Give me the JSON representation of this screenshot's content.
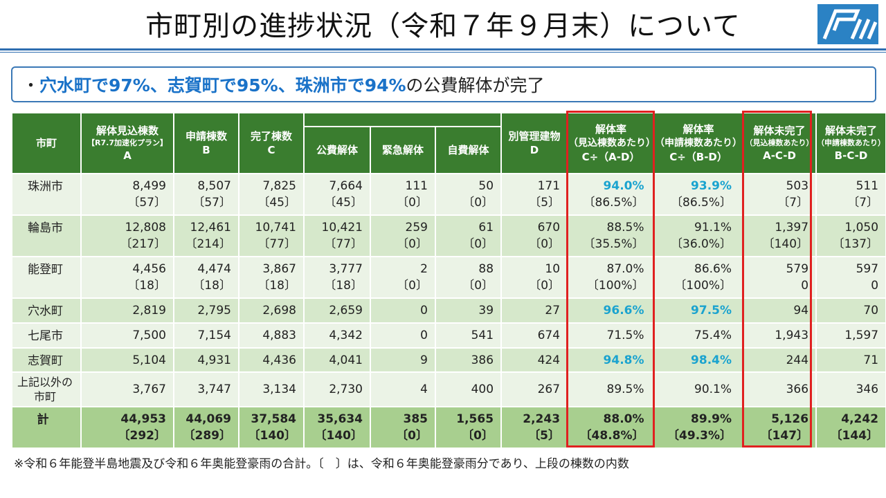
{
  "title": "市町別の進捗状況（令和７年９月末）について",
  "logo": {
    "icon": "ishikawa-prefecture-logo-icon",
    "color": "#2b82c4"
  },
  "summary": {
    "bullet": "・",
    "parts": [
      {
        "text": "穴水町で97%、志賀町で95%、珠洲市で94%",
        "highlight": true
      },
      {
        "text": "の公費解体が完了",
        "highlight": false
      }
    ]
  },
  "colors": {
    "header_bg": "#3a7d2f",
    "row_light": "#ebf3e6",
    "row_dark": "#d6e8cb",
    "total_bg": "#a8cf8f",
    "highlight_blue": "#1aa3cf",
    "box_red": "#e02020"
  },
  "headers": {
    "city": "市町",
    "estimated": {
      "line1": "解体見込棟数",
      "line2": "【R7.7加速化プラン】",
      "line3": "A"
    },
    "applied": {
      "line1": "申請棟数",
      "line2": "B"
    },
    "completed": {
      "line1": "完了棟数",
      "line2": "C"
    },
    "public": "公費解体",
    "emergency": "緊急解体",
    "self_paid": "自費解体",
    "separate": {
      "line1": "別管理建物",
      "line2": "D"
    },
    "rate_est": {
      "line1": "解体率",
      "line2": "（見込棟数あたり）",
      "line3": "C÷（A-D）"
    },
    "rate_app": {
      "line1": "解体率",
      "line2": "（申請棟数あたり）",
      "line3": "C÷（B-D）"
    },
    "incomplete_est": {
      "line1": "解体未完了",
      "line2": "（見込棟数あたり）",
      "line3": "A-C-D"
    },
    "incomplete_app": {
      "line1": "解体未完了",
      "line2": "（申請棟数あたり）",
      "line3": "B-C-D"
    }
  },
  "rows": [
    {
      "name": "珠洲市",
      "a": "8,499",
      "a2": "〔57〕",
      "b": "8,507",
      "b2": "〔57〕",
      "c": "7,825",
      "c2": "〔45〕",
      "pub": "7,664",
      "pub2": "〔45〕",
      "emg": "111",
      "emg2": "〔0〕",
      "self": "50",
      "self2": "〔0〕",
      "d": "171",
      "d2": "〔5〕",
      "r1": "94.0%",
      "r1b": "〔86.5%〕",
      "r2": "93.9%",
      "r2b": "〔86.5%〕",
      "u1": "503",
      "u1b": "〔7〕",
      "u2": "511",
      "u2b": "〔7〕"
    },
    {
      "name": "輪島市",
      "a": "12,808",
      "a2": "〔217〕",
      "b": "12,461",
      "b2": "〔214〕",
      "c": "10,741",
      "c2": "〔77〕",
      "pub": "10,421",
      "pub2": "〔77〕",
      "emg": "259",
      "emg2": "〔0〕",
      "self": "61",
      "self2": "〔0〕",
      "d": "670",
      "d2": "〔0〕",
      "r1": "88.5%",
      "r1b": "〔35.5%〕",
      "r2": "91.1%",
      "r2b": "〔36.0%〕",
      "u1": "1,397",
      "u1b": "〔140〕",
      "u2": "1,050",
      "u2b": "〔137〕"
    },
    {
      "name": "能登町",
      "a": "4,456",
      "a2": "〔18〕",
      "b": "4,474",
      "b2": "〔18〕",
      "c": "3,867",
      "c2": "〔18〕",
      "pub": "3,777",
      "pub2": "〔18〕",
      "emg": "2",
      "emg2": "〔0〕",
      "self": "88",
      "self2": "〔0〕",
      "d": "10",
      "d2": "〔0〕",
      "r1": "87.0%",
      "r1b": "〔100%〕",
      "r2": "86.6%",
      "r2b": "〔100%〕",
      "u1": "579",
      "u1b": "0",
      "u2": "597",
      "u2b": "0"
    },
    {
      "name": "穴水町",
      "a": "2,819",
      "b": "2,795",
      "c": "2,698",
      "pub": "2,659",
      "emg": "0",
      "self": "39",
      "d": "27",
      "r1": "96.6%",
      "r2": "97.5%",
      "u1": "94",
      "u2": "70"
    },
    {
      "name": "七尾市",
      "a": "7,500",
      "b": "7,154",
      "c": "4,883",
      "pub": "4,342",
      "emg": "0",
      "self": "541",
      "d": "674",
      "r1": "71.5%",
      "r2": "75.4%",
      "u1": "1,943",
      "u2": "1,597"
    },
    {
      "name": "志賀町",
      "a": "5,104",
      "b": "4,931",
      "c": "4,436",
      "pub": "4,041",
      "emg": "9",
      "self": "386",
      "d": "424",
      "r1": "94.8%",
      "r2": "98.4%",
      "u1": "244",
      "u2": "71"
    },
    {
      "name_line1": "上記以外の",
      "name_line2": "市町",
      "a": "3,767",
      "b": "3,747",
      "c": "3,134",
      "pub": "2,730",
      "emg": "4",
      "self": "400",
      "d": "267",
      "r1": "89.5%",
      "r2": "90.1%",
      "u1": "366",
      "u2": "346"
    }
  ],
  "total": {
    "name": "計",
    "a": "44,953",
    "a2": "〔292〕",
    "b": "44,069",
    "b2": "〔289〕",
    "c": "37,584",
    "c2": "〔140〕",
    "pub": "35,634",
    "pub2": "〔140〕",
    "emg": "385",
    "emg2": "〔0〕",
    "self": "1,565",
    "self2": "〔0〕",
    "d": "2,243",
    "d2": "〔5〕",
    "r1": "88.0%",
    "r1b": "〔48.8%〕",
    "r2": "89.9%",
    "r2b": "〔49.3%〕",
    "u1": "5,126",
    "u1b": "〔147〕",
    "u2": "4,242",
    "u2b": "〔144〕"
  },
  "footnote": "※令和６年能登半島地震及び令和６年奥能登豪雨の合計。〔　〕は、令和６年奥能登豪雨分であり、上段の棟数の内数"
}
